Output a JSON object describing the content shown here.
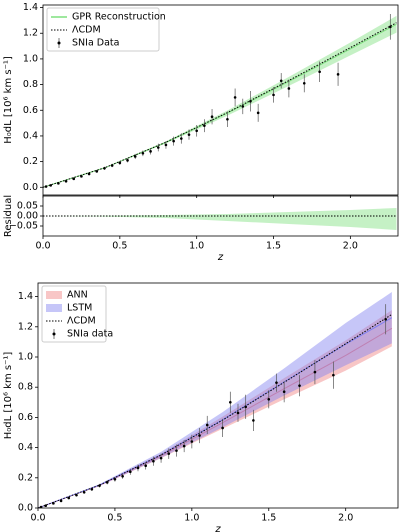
{
  "chart_data": [
    {
      "type": "line",
      "ylabel": "H₀dL [10⁶ km s⁻¹]",
      "xlim": [
        0,
        2.31
      ],
      "ylim": [
        -0.06,
        1.42
      ],
      "xticks": [
        0,
        0.5,
        1,
        1.5,
        2
      ],
      "show_xtick_labels": false,
      "yticks": [
        {
          "value": 0,
          "label": "0.0"
        },
        {
          "value": 0.2,
          "label": "0.2"
        },
        {
          "value": 0.4,
          "label": "0.4"
        },
        {
          "value": 0.6,
          "label": "0.6"
        },
        {
          "value": 0.8,
          "label": "0.8"
        },
        {
          "value": 1.0,
          "label": "1.0"
        },
        {
          "value": 1.2,
          "label": "1.2"
        },
        {
          "value": 1.4,
          "label": "1.4"
        }
      ],
      "legend": "upper left",
      "series": [
        {
          "name": "GPR Reconstruction",
          "style": "band",
          "color": "#7ee07e",
          "x": [
            0,
            0.4,
            0.8,
            1.2,
            1.6,
            2.0,
            2.3
          ],
          "values": [
            0,
            0.151,
            0.35,
            0.578,
            0.825,
            1.078,
            1.27
          ],
          "lower": [
            0,
            0.148,
            0.342,
            0.558,
            0.79,
            1.028,
            1.205
          ],
          "upper": [
            0,
            0.154,
            0.358,
            0.598,
            0.86,
            1.128,
            1.335
          ]
        },
        {
          "name": "ΛCDM",
          "style": "dotted",
          "color": "#000000",
          "x": [
            0,
            0.4,
            0.8,
            1.2,
            1.6,
            2.0,
            2.3
          ],
          "values": [
            0,
            0.1515,
            0.351,
            0.582,
            0.832,
            1.088,
            1.282
          ]
        },
        {
          "name": "SNIa Data",
          "style": "errorbar",
          "color": "#000000",
          "x": [
            0.02,
            0.05,
            0.1,
            0.15,
            0.2,
            0.25,
            0.3,
            0.35,
            0.4,
            0.45,
            0.5,
            0.55,
            0.6,
            0.65,
            0.7,
            0.75,
            0.8,
            0.85,
            0.9,
            0.95,
            1.0,
            1.05,
            1.1,
            1.2,
            1.25,
            1.3,
            1.35,
            1.4,
            1.5,
            1.55,
            1.6,
            1.7,
            1.8,
            1.92,
            2.26
          ],
          "values": [
            0.006,
            0.015,
            0.031,
            0.047,
            0.066,
            0.085,
            0.104,
            0.124,
            0.148,
            0.17,
            0.19,
            0.21,
            0.24,
            0.265,
            0.28,
            0.31,
            0.33,
            0.36,
            0.38,
            0.41,
            0.44,
            0.48,
            0.55,
            0.53,
            0.7,
            0.63,
            0.67,
            0.58,
            0.72,
            0.83,
            0.77,
            0.81,
            0.9,
            0.88,
            1.25
          ],
          "errors": [
            0.002,
            0.003,
            0.004,
            0.005,
            0.006,
            0.008,
            0.009,
            0.01,
            0.012,
            0.013,
            0.015,
            0.016,
            0.02,
            0.022,
            0.025,
            0.03,
            0.03,
            0.035,
            0.04,
            0.04,
            0.045,
            0.05,
            0.06,
            0.06,
            0.07,
            0.06,
            0.08,
            0.07,
            0.06,
            0.06,
            0.07,
            0.07,
            0.08,
            0.09,
            0.1
          ]
        }
      ]
    },
    {
      "type": "line",
      "ylabel": "Residual",
      "xlabel": "z",
      "xlim": [
        0,
        2.31
      ],
      "ylim": [
        -0.1,
        0.1
      ],
      "xticks": [
        {
          "value": 0,
          "label": "0.0"
        },
        {
          "value": 0.5,
          "label": "0.5"
        },
        {
          "value": 1,
          "label": "1.0"
        },
        {
          "value": 1.5,
          "label": "1.5"
        },
        {
          "value": 2,
          "label": "2.0"
        }
      ],
      "yticks": [
        {
          "value": -0.05,
          "label": "−0.05"
        },
        {
          "value": 0,
          "label": "0.00"
        },
        {
          "value": 0.05,
          "label": "0.05"
        }
      ],
      "series": [
        {
          "style": "band",
          "color": "#7ee07e",
          "x": [
            0,
            0.4,
            0.8,
            1.2,
            1.6,
            2.0,
            2.3
          ],
          "lower": [
            0,
            -0.003,
            -0.01,
            -0.025,
            -0.04,
            -0.055,
            -0.07
          ],
          "upper": [
            0,
            0.002,
            0.005,
            0.01,
            0.02,
            0.03,
            0.04
          ]
        },
        {
          "style": "dotted",
          "color": "#000000",
          "x": [
            0,
            2.3
          ],
          "values": [
            0,
            0
          ]
        }
      ]
    },
    {
      "type": "line",
      "ylabel": "H₀dL [10⁶ km s⁻¹]",
      "xlabel": "z",
      "xlim": [
        0,
        2.34
      ],
      "ylim": [
        0,
        1.49
      ],
      "xticks": [
        {
          "value": 0,
          "label": "0.0"
        },
        {
          "value": 0.5,
          "label": "0.5"
        },
        {
          "value": 1,
          "label": "1.0"
        },
        {
          "value": 1.5,
          "label": "1.5"
        },
        {
          "value": 2,
          "label": "2.0"
        }
      ],
      "yticks": [
        {
          "value": 0,
          "label": "0.0"
        },
        {
          "value": 0.2,
          "label": "0.2"
        },
        {
          "value": 0.4,
          "label": "0.4"
        },
        {
          "value": 0.6,
          "label": "0.6"
        },
        {
          "value": 0.8,
          "label": "0.8"
        },
        {
          "value": 1.0,
          "label": "1.0"
        },
        {
          "value": 1.2,
          "label": "1.2"
        },
        {
          "value": 1.4,
          "label": "1.4"
        }
      ],
      "legend": "upper left",
      "series": [
        {
          "name": "ANN",
          "style": "band",
          "color": "#f08080",
          "x": [
            0,
            0.4,
            0.8,
            1.2,
            1.6,
            2.0,
            2.3
          ],
          "values": [
            0,
            0.15,
            0.345,
            0.565,
            0.79,
            1.01,
            1.19
          ],
          "lower": [
            0,
            0.145,
            0.33,
            0.525,
            0.72,
            0.91,
            1.07
          ],
          "upper": [
            0,
            0.155,
            0.36,
            0.605,
            0.86,
            1.11,
            1.31
          ]
        },
        {
          "name": "LSTM",
          "style": "band",
          "color": "#8080f0",
          "x": [
            0,
            0.4,
            0.8,
            1.2,
            1.6,
            2.0,
            2.3
          ],
          "values": [
            0,
            0.152,
            0.352,
            0.585,
            0.835,
            1.085,
            1.26
          ],
          "lower": [
            0,
            0.146,
            0.332,
            0.535,
            0.745,
            0.945,
            1.09
          ],
          "upper": [
            0,
            0.158,
            0.372,
            0.635,
            0.925,
            1.225,
            1.43
          ]
        },
        {
          "name": "ΛCDM",
          "style": "dotted",
          "color": "#000000",
          "x": [
            0,
            0.4,
            0.8,
            1.2,
            1.6,
            2.0,
            2.3
          ],
          "values": [
            0,
            0.1515,
            0.351,
            0.582,
            0.832,
            1.088,
            1.282
          ]
        },
        {
          "name": "SNIa data",
          "style": "errorbar",
          "color": "#000000",
          "x": [
            0.02,
            0.05,
            0.1,
            0.15,
            0.2,
            0.25,
            0.3,
            0.35,
            0.4,
            0.45,
            0.5,
            0.55,
            0.6,
            0.65,
            0.7,
            0.75,
            0.8,
            0.85,
            0.9,
            0.95,
            1.0,
            1.05,
            1.1,
            1.2,
            1.25,
            1.3,
            1.35,
            1.4,
            1.5,
            1.55,
            1.6,
            1.7,
            1.8,
            1.92,
            2.26
          ],
          "values": [
            0.006,
            0.015,
            0.031,
            0.047,
            0.066,
            0.085,
            0.104,
            0.124,
            0.148,
            0.17,
            0.19,
            0.21,
            0.24,
            0.265,
            0.28,
            0.31,
            0.33,
            0.36,
            0.38,
            0.41,
            0.44,
            0.48,
            0.55,
            0.53,
            0.7,
            0.63,
            0.67,
            0.58,
            0.72,
            0.83,
            0.77,
            0.81,
            0.9,
            0.88,
            1.25
          ],
          "errors": [
            0.002,
            0.003,
            0.004,
            0.005,
            0.006,
            0.008,
            0.009,
            0.01,
            0.012,
            0.013,
            0.015,
            0.016,
            0.02,
            0.022,
            0.025,
            0.03,
            0.03,
            0.035,
            0.04,
            0.04,
            0.045,
            0.05,
            0.06,
            0.06,
            0.07,
            0.06,
            0.08,
            0.07,
            0.06,
            0.06,
            0.07,
            0.07,
            0.08,
            0.09,
            0.1
          ]
        }
      ]
    }
  ]
}
